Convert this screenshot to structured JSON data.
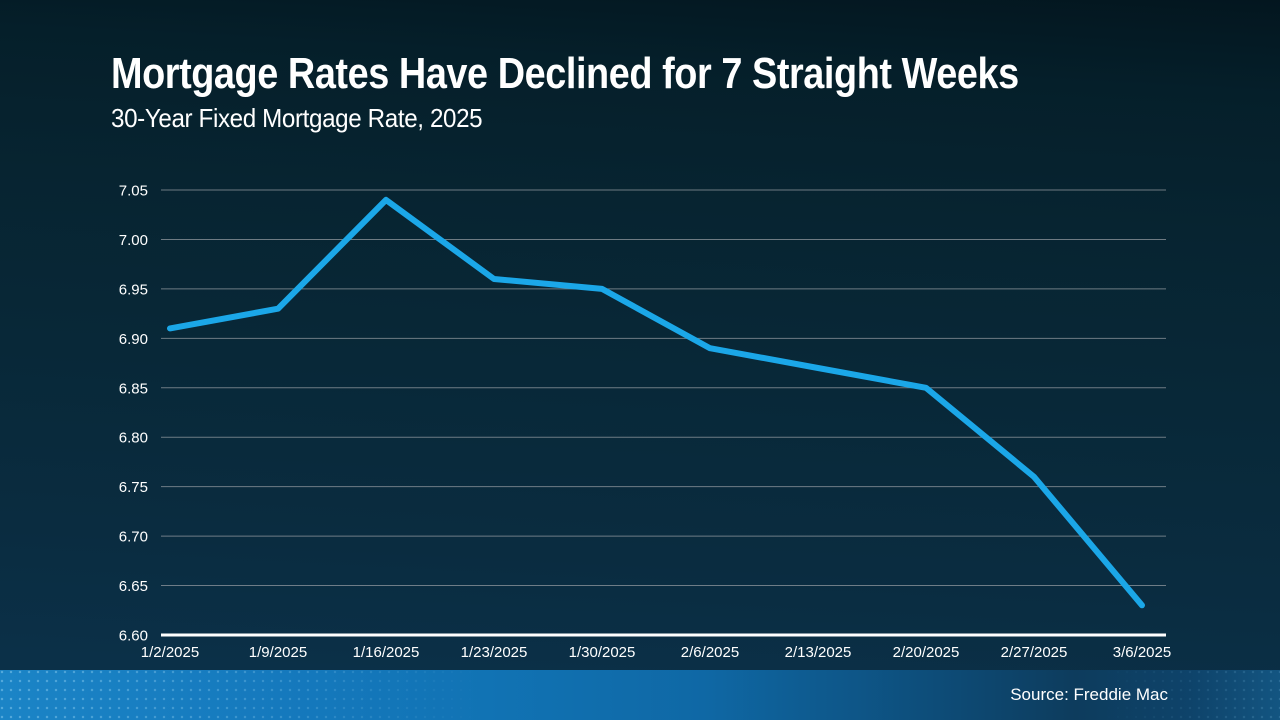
{
  "header": {
    "title": "Mortgage Rates Have Declined for 7 Straight Weeks",
    "subtitle": "30-Year Fixed Mortgage Rate, 2025"
  },
  "chart_data": {
    "type": "line",
    "title": "Mortgage Rates Have Declined for 7 Straight Weeks",
    "subtitle": "30-Year Fixed Mortgage Rate, 2025",
    "categories": [
      "1/2/2025",
      "1/9/2025",
      "1/16/2025",
      "1/23/2025",
      "1/30/2025",
      "2/6/2025",
      "2/13/2025",
      "2/20/2025",
      "2/27/2025",
      "3/6/2025"
    ],
    "series": [
      {
        "name": "30-Year Fixed Mortgage Rate",
        "values": [
          6.91,
          6.93,
          7.04,
          6.96,
          6.95,
          6.89,
          6.87,
          6.85,
          6.76,
          6.63
        ]
      }
    ],
    "xlabel": "",
    "ylabel": "",
    "ylim": [
      6.6,
      7.05
    ],
    "ytick_step": 0.05,
    "ytick_decimals": 2,
    "grid": true,
    "legend_position": "none",
    "line_color": "#1ba7e8",
    "gridline_color": "#9aa0a5",
    "axis_line_color": "#ffffff",
    "tick_label_color": "#ffffff"
  },
  "footer": {
    "source": "Source: Freddie Mac"
  },
  "colors": {
    "background_top": "#03161f",
    "background_bottom": "#0b3049",
    "title_text": "#ffffff",
    "footer_left": "#1b84c6",
    "footer_right": "#135581",
    "accent_line": "#1ba7e8"
  }
}
